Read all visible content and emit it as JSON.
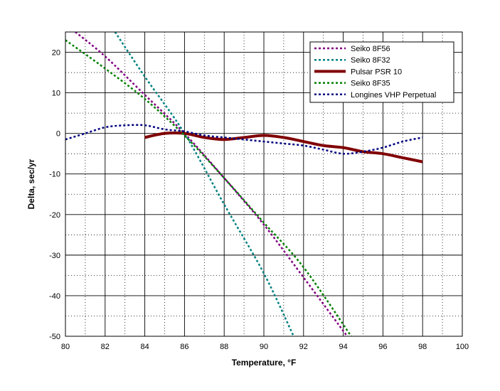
{
  "chart_data": {
    "type": "line",
    "title": "",
    "xlabel": "Temperature, °F",
    "ylabel": "Delta, sec/yr",
    "xlim": [
      80,
      100
    ],
    "ylim": [
      -50,
      25
    ],
    "x_ticks": [
      80,
      82,
      84,
      86,
      88,
      90,
      92,
      94,
      96,
      98,
      100
    ],
    "y_ticks": [
      20,
      10,
      0,
      -10,
      -20,
      -30,
      -40,
      -50
    ],
    "x_minor_step": 1,
    "y_minor_step": 5,
    "grid": "on",
    "legend_position": "top-right",
    "series": [
      {
        "name": "Seiko 8F56",
        "color": "#800080",
        "style": "dotted",
        "x": [
          80.5,
          82,
          84,
          86,
          88,
          90,
          92,
          94.2
        ],
        "y": [
          25,
          19,
          9.5,
          0,
          -11,
          -22.5,
          -35.5,
          -50
        ]
      },
      {
        "name": "Seiko 8F32",
        "color": "#008080",
        "style": "dotted",
        "x": [
          82.5,
          84,
          86,
          88,
          90,
          91.5
        ],
        "y": [
          25,
          14,
          0,
          -17.5,
          -34.5,
          -50
        ]
      },
      {
        "name": "Pulsar PSR 10",
        "color": "#800000",
        "style": "solid-thick",
        "x": [
          84,
          85,
          86,
          87,
          88,
          89,
          90,
          91,
          92,
          93,
          94,
          95,
          96,
          97,
          98
        ],
        "y": [
          -1,
          0,
          0,
          -1,
          -1.5,
          -1,
          -0.5,
          -1,
          -2,
          -3,
          -3.5,
          -4.5,
          -5,
          -6,
          -7
        ]
      },
      {
        "name": "Seiko 8F35",
        "color": "#008000",
        "style": "dotted",
        "x": [
          80,
          82,
          84,
          86,
          88,
          90,
          92,
          94.4
        ],
        "y": [
          23,
          16,
          8.5,
          -0.5,
          -11,
          -22,
          -33,
          -50
        ]
      },
      {
        "name": "Longines VHP Perpetual",
        "color": "#000080",
        "style": "dotted",
        "x": [
          80,
          81,
          82,
          83,
          84,
          85,
          86,
          87,
          88,
          89,
          90,
          91,
          92,
          93,
          94,
          95,
          96,
          97,
          98
        ],
        "y": [
          -1.5,
          0,
          1.5,
          2,
          2,
          1,
          0.5,
          -0.5,
          -1,
          -1.5,
          -2,
          -2.5,
          -3,
          -4,
          -5,
          -4.5,
          -3.5,
          -2,
          -1
        ]
      }
    ]
  }
}
